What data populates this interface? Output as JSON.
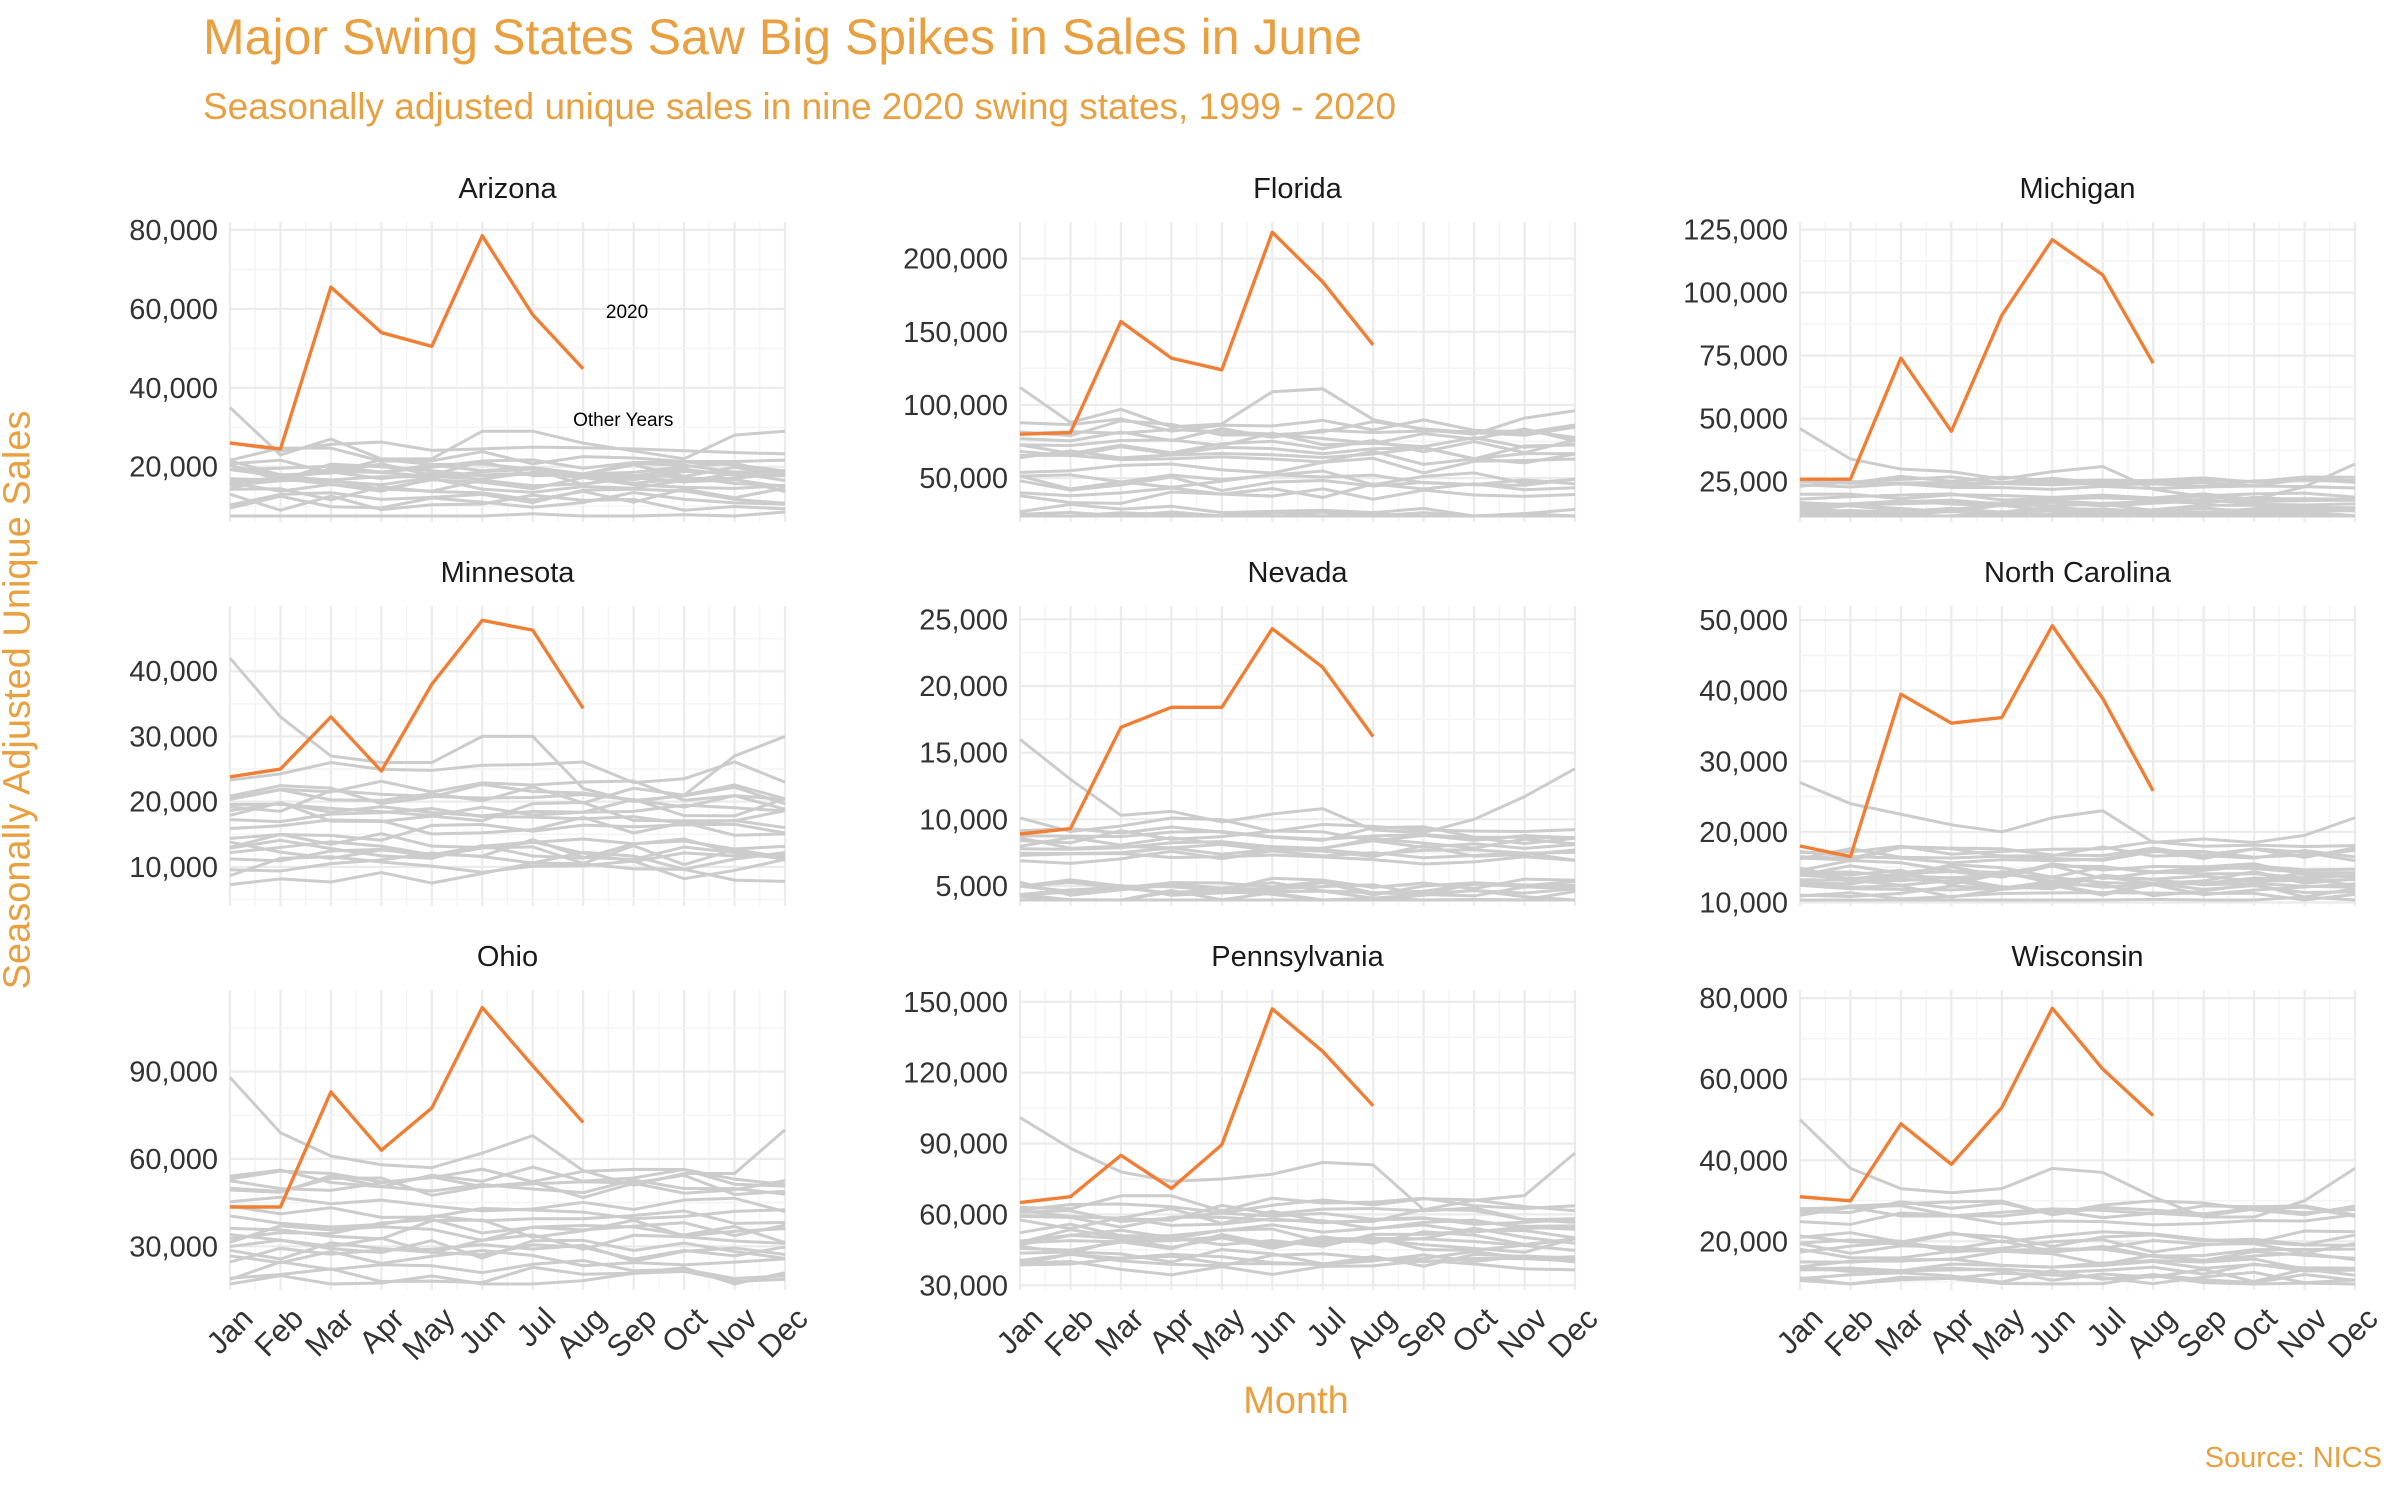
{
  "chart_data": {
    "type": "line",
    "title": "Major Swing States Saw Big Spikes in Sales in June",
    "subtitle": "Seasonally adjusted unique sales in nine 2020 swing states, 1999 - 2020",
    "xlabel": "Month",
    "ylabel": "Seasonally Adjusted Unique Sales",
    "caption": "Source: NICS",
    "months": [
      "Jan",
      "Feb",
      "Mar",
      "Apr",
      "May",
      "Jun",
      "Jul",
      "Aug",
      "Sep",
      "Oct",
      "Nov",
      "Dec"
    ],
    "colors": {
      "highlight": "#F07F35",
      "background_series": "#CCCCCC",
      "grid": "#EBEBEB",
      "text_accent": "#E8A040"
    },
    "annotations": [
      {
        "panel": "Arizona",
        "label_2020": "2020",
        "label_other": "Other Years"
      }
    ],
    "panels": [
      {
        "name": "Arizona",
        "ylim": [
          6000,
          82000
        ],
        "yticks": [
          20000,
          40000,
          60000,
          80000
        ],
        "yticklabels": [
          "20,000",
          "40,000",
          "60,000",
          "80,000"
        ],
        "highlight": {
          "name": "2020",
          "values": [
            26000,
            24500,
            65500,
            54000,
            50500,
            78500,
            58500,
            44800
          ]
        },
        "background_base": [
          10000,
          14000,
          18000,
          22000
        ],
        "background_spread": 6000,
        "background_top": [
          35000,
          23000,
          27000,
          22000,
          22000,
          29000,
          29000,
          26000,
          24000,
          22000,
          28000,
          29000
        ]
      },
      {
        "name": "Florida",
        "ylim": [
          20000,
          225000
        ],
        "yticks": [
          50000,
          100000,
          150000,
          200000
        ],
        "yticklabels": [
          "50,000",
          "100,000",
          "150,000",
          "200,000"
        ],
        "highlight": {
          "name": "2020",
          "values": [
            80000,
            81000,
            157000,
            132000,
            124000,
            218000,
            184000,
            141000
          ]
        },
        "background_base": [
          25000,
          45000,
          65000,
          80000
        ],
        "background_spread": 15000,
        "background_top": [
          112000,
          88000,
          97000,
          85000,
          87000,
          109000,
          111000,
          90000,
          83000,
          80000,
          91000,
          96000
        ]
      },
      {
        "name": "Michigan",
        "ylim": [
          9000,
          128000
        ],
        "yticks": [
          25000,
          50000,
          75000,
          100000,
          125000
        ],
        "yticklabels": [
          "25,000",
          "50,000",
          "75,000",
          "100,000",
          "125,000"
        ],
        "highlight": {
          "name": "2020",
          "values": [
            26000,
            26000,
            74000,
            45000,
            91000,
            121000,
            107000,
            72000
          ]
        },
        "background_base": [
          11000,
          14000,
          18000,
          24000
        ],
        "background_spread": 4000,
        "background_top": [
          46000,
          34000,
          30000,
          29000,
          26000,
          29000,
          31000,
          22000,
          19000,
          18000,
          23000,
          32000
        ]
      },
      {
        "name": "Minnesota",
        "ylim": [
          4000,
          50000
        ],
        "yticks": [
          10000,
          20000,
          30000,
          40000
        ],
        "yticklabels": [
          "10,000",
          "20,000",
          "30,000",
          "40,000"
        ],
        "highlight": {
          "name": "2020",
          "values": [
            23800,
            25000,
            33000,
            24700,
            38000,
            47800,
            46300,
            34300
          ]
        },
        "background_base": [
          10500,
          13500,
          17000,
          22000
        ],
        "background_spread": 5000,
        "background_top": [
          42000,
          33000,
          27000,
          26000,
          26000,
          30000,
          30000,
          22000,
          20000,
          21000,
          27000,
          30000
        ]
      },
      {
        "name": "Nevada",
        "ylim": [
          3500,
          26000
        ],
        "yticks": [
          5000,
          10000,
          15000,
          20000,
          25000
        ],
        "yticklabels": [
          "5,000",
          "10,000",
          "15,000",
          "20,000",
          "25,000"
        ],
        "highlight": {
          "name": "2020",
          "values": [
            8900,
            9300,
            16900,
            18400,
            18400,
            24300,
            21400,
            16200
          ]
        },
        "background_base": [
          4000,
          5000,
          7500,
          9000
        ],
        "background_spread": 1500,
        "background_top": [
          16000,
          13000,
          10300,
          10600,
          9800,
          10400,
          10800,
          9200,
          9000,
          10000,
          11700,
          13800
        ]
      },
      {
        "name": "North Carolina",
        "ylim": [
          9500,
          52000
        ],
        "yticks": [
          10000,
          20000,
          30000,
          40000,
          50000
        ],
        "yticklabels": [
          "10,000",
          "20,000",
          "30,000",
          "40,000",
          "50,000"
        ],
        "highlight": {
          "name": "2020",
          "values": [
            18000,
            16500,
            39500,
            35400,
            36200,
            49200,
            38900,
            25800
          ]
        },
        "background_base": [
          11500,
          13000,
          15000,
          17000
        ],
        "background_spread": 3000,
        "background_top": [
          27000,
          24000,
          22500,
          21000,
          20000,
          22000,
          23000,
          18500,
          19000,
          18500,
          19500,
          22000
        ]
      },
      {
        "name": "Ohio",
        "ylim": [
          15000,
          118000
        ],
        "yticks": [
          30000,
          60000,
          90000
        ],
        "yticklabels": [
          "30,000",
          "60,000",
          "90,000"
        ],
        "highlight": {
          "name": "2020",
          "values": [
            43500,
            43500,
            83000,
            63000,
            77500,
            112000,
            92000,
            72500
          ]
        },
        "background_base": [
          22000,
          30000,
          40000,
          50000
        ],
        "background_spread": 10000,
        "background_top": [
          88000,
          69000,
          61000,
          58000,
          57000,
          62000,
          68000,
          56000,
          51000,
          55000,
          55000,
          70000
        ]
      },
      {
        "name": "Pennsylvania",
        "ylim": [
          28000,
          155000
        ],
        "yticks": [
          30000,
          60000,
          90000,
          120000,
          150000
        ],
        "yticklabels": [
          "30,000",
          "60,000",
          "90,000",
          "120,000",
          "150,000"
        ],
        "highlight": {
          "name": "2020",
          "values": [
            65000,
            67500,
            85000,
            71000,
            89500,
            147000,
            129000,
            106000
          ]
        },
        "background_base": [
          38000,
          45000,
          53000,
          62000
        ],
        "background_spread": 10000,
        "background_top": [
          101000,
          88000,
          78000,
          74000,
          75000,
          77000,
          82000,
          81000,
          62000,
          66000,
          68000,
          86000
        ]
      },
      {
        "name": "Wisconsin",
        "ylim": [
          8000,
          82000
        ],
        "yticks": [
          20000,
          40000,
          60000,
          80000
        ],
        "yticklabels": [
          "20,000",
          "40,000",
          "60,000",
          "80,000"
        ],
        "highlight": {
          "name": "2020",
          "values": [
            31000,
            30000,
            49000,
            39000,
            53000,
            77500,
            62500,
            51000
          ]
        },
        "background_base": [
          12000,
          15000,
          20000,
          26000
        ],
        "background_spread": 5000,
        "background_top": [
          50000,
          38000,
          33000,
          32000,
          33000,
          38000,
          37000,
          31000,
          26000,
          26000,
          30000,
          38000
        ]
      }
    ]
  }
}
